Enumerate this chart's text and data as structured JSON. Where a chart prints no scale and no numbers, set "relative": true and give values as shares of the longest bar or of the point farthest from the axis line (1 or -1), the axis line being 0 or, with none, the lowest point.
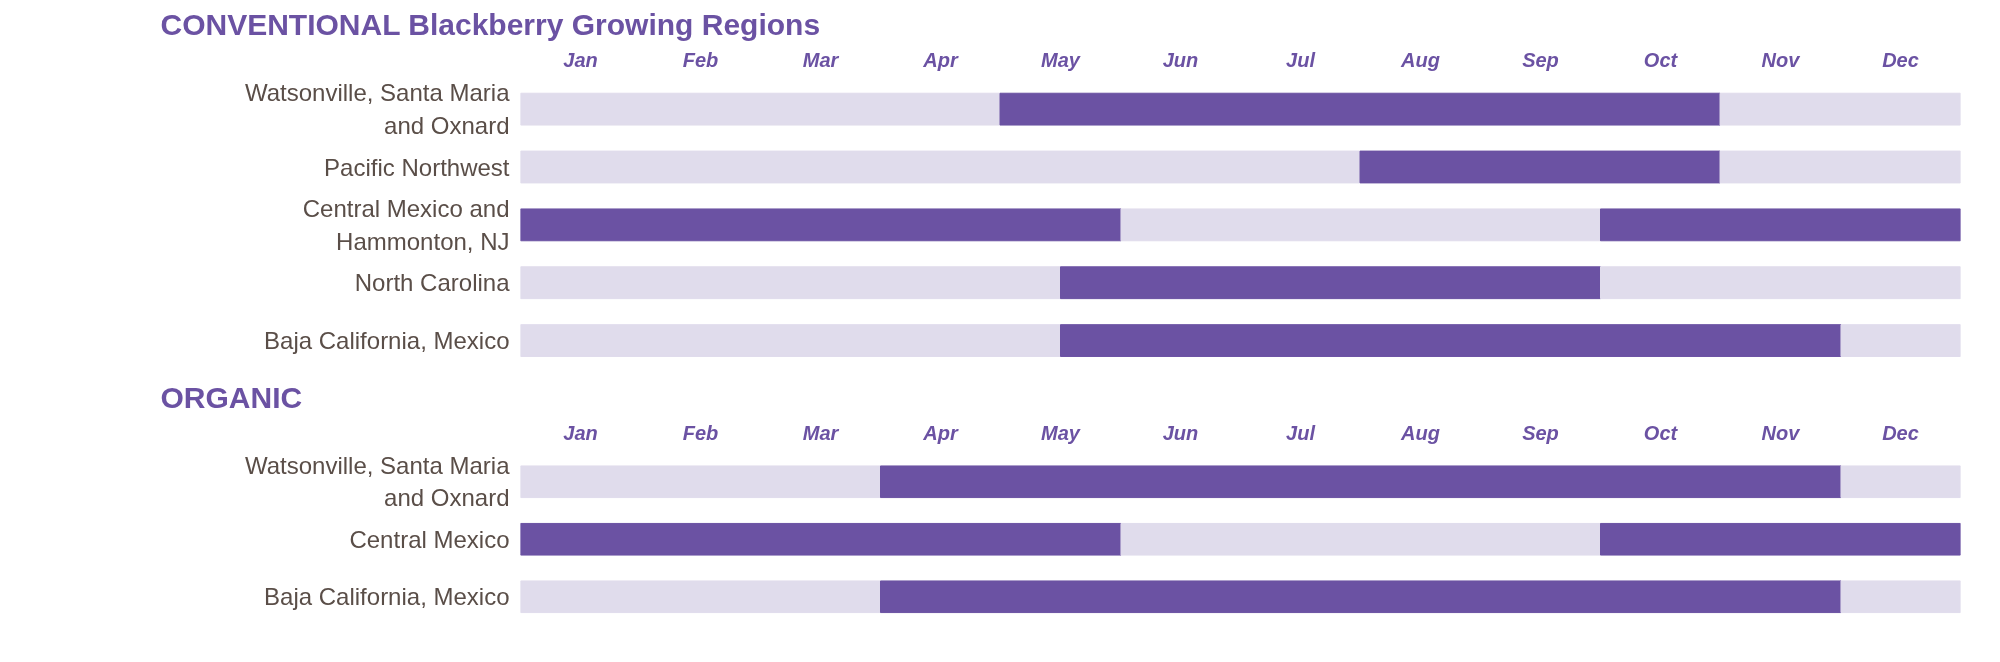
{
  "chart_data": [
    {
      "type": "bar",
      "orientation": "horizontal",
      "relative": true,
      "stacked": true,
      "title": "CONVENTIONAL Blackberry Growing Regions",
      "categories": [
        "Watsonville, Santa Maria\nand Oxnard",
        "Pacific Northwest",
        "Central Mexico and\nHammonton, NJ",
        "North Carolina",
        "Baja California, Mexico"
      ],
      "series": [
        {
          "colors": [
            "#e0dcec",
            "#e0dcec",
            "#6b52a3",
            "#e0dcec",
            "#e0dcec"
          ],
          "values": [
            0.333,
            0.583,
            0.417,
            0.375,
            0.375
          ]
        },
        {
          "colors": [
            "#6b52a3",
            "#6b52a3",
            "#e0dcec",
            "#6b52a3",
            "#6b52a3"
          ],
          "values": [
            0.5,
            0.25,
            0.333,
            0.375,
            0.542
          ]
        },
        {
          "colors": [
            "#e0dcec",
            "#e0dcec",
            "#6b52a3",
            "#e0dcec",
            "#e0dcec"
          ],
          "values": [
            0.167,
            0.167,
            0.25,
            0.25,
            0.083
          ]
        }
      ],
      "annotations": [
        "Jan",
        "Feb",
        "Mar",
        "Apr",
        "May",
        "Jun",
        "Jul",
        "Aug",
        "Sep",
        "Oct",
        "Nov",
        "Dec"
      ],
      "grid": false
    },
    {
      "type": "bar",
      "orientation": "horizontal",
      "relative": true,
      "stacked": true,
      "title": "ORGANIC",
      "categories": [
        "Watsonville, Santa Maria\nand Oxnard",
        "Central Mexico",
        "Baja California, Mexico"
      ],
      "series": [
        {
          "colors": [
            "#e0dcec",
            "#6b52a3",
            "#e0dcec"
          ],
          "values": [
            0.25,
            0.417,
            0.25
          ]
        },
        {
          "colors": [
            "#6b52a3",
            "#e0dcec",
            "#6b52a3"
          ],
          "values": [
            0.667,
            0.333,
            0.667
          ]
        },
        {
          "colors": [
            "#e0dcec",
            "#6b52a3",
            "#e0dcec"
          ],
          "values": [
            0.083,
            0.25,
            0.083
          ]
        }
      ],
      "annotations": [
        "Jan",
        "Feb",
        "Mar",
        "Apr",
        "May",
        "Jun",
        "Jul",
        "Aug",
        "Sep",
        "Oct",
        "Nov",
        "Dec"
      ],
      "grid": false
    }
  ]
}
